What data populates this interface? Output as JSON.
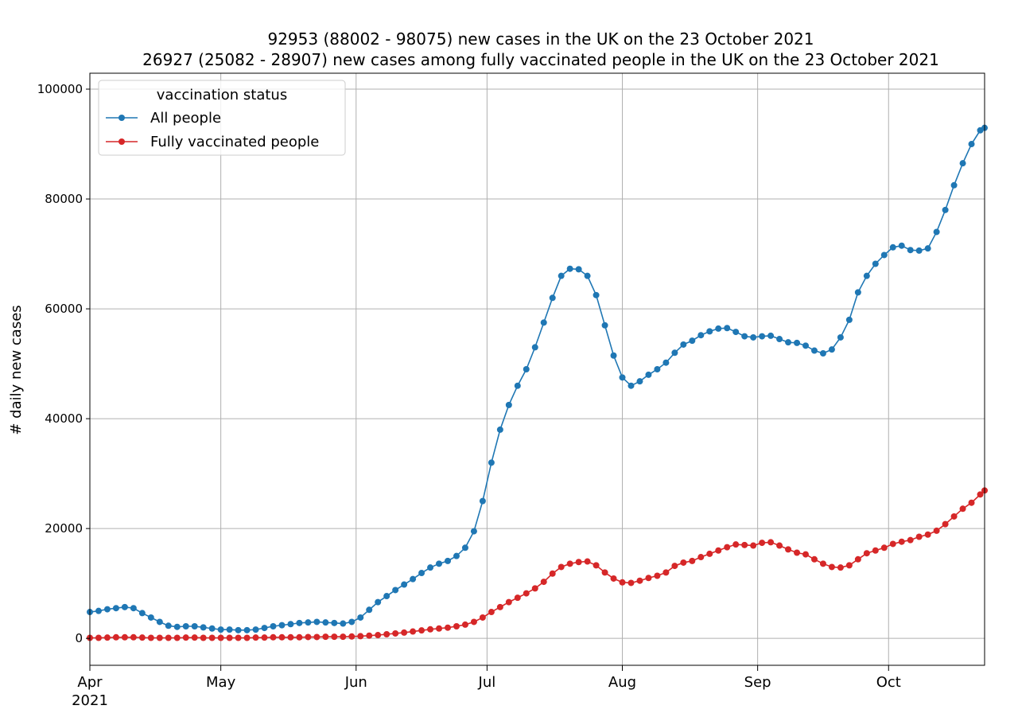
{
  "chart_data": {
    "type": "line",
    "title": "92953 (88002 - 98075) new cases in the UK on the 23 October 2021",
    "subtitle": "26927 (25082 - 28907) new cases among fully vaccinated people in the UK on the 23 October 2021",
    "ylabel": "# daily new cases",
    "legend_title": "vaccination status",
    "legend": "upper left",
    "grid": true,
    "x_year_label": "2021",
    "xlim": [
      "2021-04-01",
      "2021-10-23"
    ],
    "xticks": [
      {
        "value": "2021-04-01",
        "label": "Apr"
      },
      {
        "value": "2021-05-01",
        "label": "May"
      },
      {
        "value": "2021-06-01",
        "label": "Jun"
      },
      {
        "value": "2021-07-01",
        "label": "Jul"
      },
      {
        "value": "2021-08-01",
        "label": "Aug"
      },
      {
        "value": "2021-09-01",
        "label": "Sep"
      },
      {
        "value": "2021-10-01",
        "label": "Oct"
      }
    ],
    "ylim": [
      -4900,
      102900
    ],
    "yticks": [
      0,
      20000,
      40000,
      60000,
      80000,
      100000
    ],
    "x": [
      "2021-04-01",
      "2021-04-03",
      "2021-04-05",
      "2021-04-07",
      "2021-04-09",
      "2021-04-11",
      "2021-04-13",
      "2021-04-15",
      "2021-04-17",
      "2021-04-19",
      "2021-04-21",
      "2021-04-23",
      "2021-04-25",
      "2021-04-27",
      "2021-04-29",
      "2021-05-01",
      "2021-05-03",
      "2021-05-05",
      "2021-05-07",
      "2021-05-09",
      "2021-05-11",
      "2021-05-13",
      "2021-05-15",
      "2021-05-17",
      "2021-05-19",
      "2021-05-21",
      "2021-05-23",
      "2021-05-25",
      "2021-05-27",
      "2021-05-29",
      "2021-05-31",
      "2021-06-02",
      "2021-06-04",
      "2021-06-06",
      "2021-06-08",
      "2021-06-10",
      "2021-06-12",
      "2021-06-14",
      "2021-06-16",
      "2021-06-18",
      "2021-06-20",
      "2021-06-22",
      "2021-06-24",
      "2021-06-26",
      "2021-06-28",
      "2021-06-30",
      "2021-07-02",
      "2021-07-04",
      "2021-07-06",
      "2021-07-08",
      "2021-07-10",
      "2021-07-12",
      "2021-07-14",
      "2021-07-16",
      "2021-07-18",
      "2021-07-20",
      "2021-07-22",
      "2021-07-24",
      "2021-07-26",
      "2021-07-28",
      "2021-07-30",
      "2021-08-01",
      "2021-08-03",
      "2021-08-05",
      "2021-08-07",
      "2021-08-09",
      "2021-08-11",
      "2021-08-13",
      "2021-08-15",
      "2021-08-17",
      "2021-08-19",
      "2021-08-21",
      "2021-08-23",
      "2021-08-25",
      "2021-08-27",
      "2021-08-29",
      "2021-08-31",
      "2021-09-02",
      "2021-09-04",
      "2021-09-06",
      "2021-09-08",
      "2021-09-10",
      "2021-09-12",
      "2021-09-14",
      "2021-09-16",
      "2021-09-18",
      "2021-09-20",
      "2021-09-22",
      "2021-09-24",
      "2021-09-26",
      "2021-09-28",
      "2021-09-30",
      "2021-10-02",
      "2021-10-04",
      "2021-10-06",
      "2021-10-08",
      "2021-10-10",
      "2021-10-12",
      "2021-10-14",
      "2021-10-16",
      "2021-10-18",
      "2021-10-20",
      "2021-10-22",
      "2021-10-23"
    ],
    "series": [
      {
        "name": "All people",
        "color": "#1f77b4",
        "values": [
          4800,
          5000,
          5300,
          5500,
          5700,
          5500,
          4600,
          3800,
          3000,
          2300,
          2100,
          2200,
          2200,
          2000,
          1800,
          1600,
          1600,
          1500,
          1500,
          1600,
          1900,
          2200,
          2400,
          2600,
          2800,
          2900,
          3000,
          2900,
          2800,
          2700,
          3000,
          3800,
          5200,
          6600,
          7700,
          8800,
          9800,
          10800,
          11900,
          12900,
          13600,
          14100,
          15000,
          16500,
          19500,
          25000,
          32000,
          38000,
          42500,
          46000,
          49000,
          53000,
          57500,
          62000,
          66000,
          67300,
          67200,
          66000,
          62500,
          57000,
          51500,
          47500,
          46000,
          46800,
          48000,
          49000,
          50200,
          52000,
          53500,
          54200,
          55200,
          55900,
          56400,
          56500,
          55800,
          55000,
          54800,
          55000,
          55100,
          54500,
          53900,
          53800,
          53300,
          52400,
          51900,
          52600,
          54800,
          58000,
          63000,
          66000,
          68200,
          69800,
          71200,
          71500,
          70700,
          70600,
          71000,
          74000,
          78000,
          82500,
          86500,
          90000,
          92500,
          92953
        ]
      },
      {
        "name": "Fully vaccinated people",
        "color": "#d62728",
        "values": [
          100,
          100,
          150,
          200,
          200,
          200,
          150,
          100,
          100,
          100,
          100,
          150,
          150,
          100,
          100,
          100,
          100,
          100,
          100,
          150,
          150,
          200,
          200,
          200,
          200,
          250,
          250,
          300,
          300,
          300,
          350,
          400,
          500,
          600,
          750,
          900,
          1050,
          1250,
          1450,
          1650,
          1800,
          1950,
          2200,
          2500,
          3000,
          3800,
          4800,
          5700,
          6600,
          7400,
          8200,
          9100,
          10300,
          11800,
          13000,
          13600,
          13900,
          14000,
          13300,
          12000,
          10900,
          10200,
          10100,
          10500,
          11000,
          11400,
          12000,
          13200,
          13800,
          14100,
          14800,
          15400,
          16000,
          16600,
          17100,
          17000,
          16900,
          17400,
          17500,
          16900,
          16200,
          15600,
          15300,
          14400,
          13600,
          13000,
          12900,
          13300,
          14400,
          15500,
          16000,
          16500,
          17200,
          17600,
          17900,
          18500,
          18900,
          19600,
          20800,
          22200,
          23600,
          24700,
          26200,
          26927
        ]
      }
    ]
  }
}
